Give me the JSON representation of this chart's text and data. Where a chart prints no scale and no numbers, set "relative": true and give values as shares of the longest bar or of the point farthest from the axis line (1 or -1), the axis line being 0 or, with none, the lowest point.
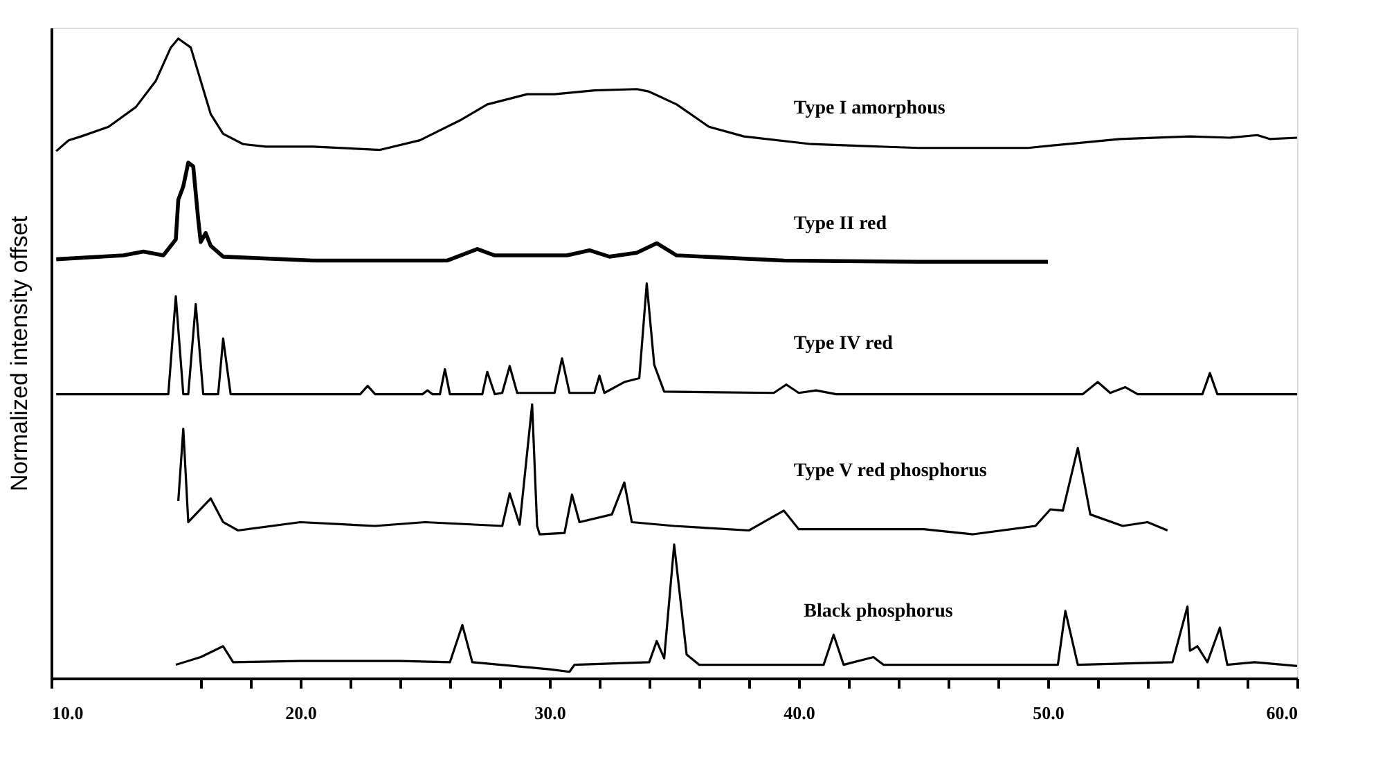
{
  "chart_data": {
    "type": "line",
    "relative": true,
    "ylabel": "Normalized intensity offset",
    "tick_labels": "x",
    "grid": false,
    "legend": false,
    "marker": "none",
    "line_style": "solid",
    "xlim": [
      10,
      60
    ],
    "xticks": [
      {
        "value": 10,
        "label": "10.0"
      },
      {
        "value": 16,
        "label": null
      },
      {
        "value": 18,
        "label": null
      },
      {
        "value": 20,
        "label": "20.0"
      },
      {
        "value": 22,
        "label": null
      },
      {
        "value": 24,
        "label": null
      },
      {
        "value": 26,
        "label": null
      },
      {
        "value": 28,
        "label": null
      },
      {
        "value": 30,
        "label": "30.0"
      },
      {
        "value": 32,
        "label": null
      },
      {
        "value": 34,
        "label": null
      },
      {
        "value": 36,
        "label": null
      },
      {
        "value": 38,
        "label": null
      },
      {
        "value": 40,
        "label": "40.0"
      },
      {
        "value": 42,
        "label": null
      },
      {
        "value": 44,
        "label": null
      },
      {
        "value": 46,
        "label": null
      },
      {
        "value": 48,
        "label": null
      },
      {
        "value": 50,
        "label": "50.0"
      },
      {
        "value": 52,
        "label": null
      },
      {
        "value": 54,
        "label": null
      },
      {
        "value": 56,
        "label": null
      },
      {
        "value": 58,
        "label": null
      },
      {
        "value": 60,
        "label": "60.0"
      }
    ],
    "series": [
      {
        "name": "Type I amorphous",
        "color": "#000000",
        "x": [
          10.2,
          10.7,
          11.2,
          12.3,
          13.4,
          14.2,
          14.8,
          15.1,
          15.6,
          16.0,
          16.4,
          16.9,
          17.7,
          18.6,
          20.5,
          23.2,
          24.8,
          26.4,
          27.5,
          29.1,
          30.2,
          31.8,
          33.5,
          34.0,
          35.1,
          36.4,
          37.8,
          40.5,
          44.8,
          49.2,
          50.2,
          52.9,
          55.7,
          57.3,
          58.4,
          58.9,
          60.0
        ],
        "values": [
          0.824,
          0.841,
          0.847,
          0.862,
          0.893,
          0.934,
          0.986,
          1.0,
          0.986,
          0.934,
          0.882,
          0.851,
          0.835,
          0.831,
          0.831,
          0.826,
          0.841,
          0.872,
          0.897,
          0.913,
          0.913,
          0.919,
          0.921,
          0.917,
          0.897,
          0.862,
          0.847,
          0.835,
          0.829,
          0.829,
          0.833,
          0.843,
          0.847,
          0.845,
          0.849,
          0.843,
          0.845
        ]
      },
      {
        "name": "Type II red",
        "color": "#000000",
        "x": [
          10.2,
          12.9,
          13.7,
          14.5,
          15.0,
          15.1,
          15.3,
          15.5,
          15.7,
          15.9,
          16.0,
          16.2,
          16.4,
          16.9,
          20.5,
          25.9,
          26.7,
          27.1,
          27.8,
          30.7,
          31.6,
          32.4,
          33.5,
          34.3,
          35.1,
          39.4,
          44.8,
          50.0
        ],
        "values": [
          0.655,
          0.661,
          0.667,
          0.661,
          0.686,
          0.748,
          0.769,
          0.806,
          0.8,
          0.717,
          0.682,
          0.696,
          0.676,
          0.659,
          0.653,
          0.653,
          0.665,
          0.671,
          0.661,
          0.661,
          0.669,
          0.659,
          0.665,
          0.68,
          0.661,
          0.653,
          0.651,
          0.651
        ]
      },
      {
        "name": "Type IV red",
        "color": "#000000",
        "x": [
          10.2,
          14.7,
          15.0,
          15.3,
          15.5,
          15.8,
          16.1,
          16.7,
          16.9,
          17.2,
          22.4,
          22.7,
          23.0,
          24.9,
          25.1,
          25.3,
          25.6,
          25.8,
          26.0,
          27.3,
          27.5,
          27.8,
          28.1,
          28.4,
          28.7,
          30.2,
          30.5,
          30.8,
          31.8,
          32.0,
          32.2,
          33.0,
          33.6,
          33.9,
          34.2,
          34.6,
          39.0,
          39.5,
          40.0,
          40.7,
          41.5,
          51.4,
          52.0,
          52.5,
          53.1,
          53.6,
          56.2,
          56.5,
          56.8,
          60.0
        ],
        "values": [
          0.444,
          0.444,
          0.597,
          0.444,
          0.444,
          0.585,
          0.444,
          0.444,
          0.531,
          0.444,
          0.444,
          0.457,
          0.444,
          0.444,
          0.45,
          0.444,
          0.444,
          0.483,
          0.444,
          0.444,
          0.479,
          0.444,
          0.446,
          0.488,
          0.446,
          0.446,
          0.5,
          0.446,
          0.446,
          0.473,
          0.446,
          0.463,
          0.469,
          0.617,
          0.49,
          0.448,
          0.446,
          0.459,
          0.446,
          0.45,
          0.444,
          0.444,
          0.463,
          0.446,
          0.455,
          0.444,
          0.444,
          0.477,
          0.444,
          0.444
        ]
      },
      {
        "name": "Type V red phosphorus",
        "color": "#000000",
        "x": [
          15.1,
          15.3,
          15.5,
          16.4,
          16.9,
          17.5,
          20.0,
          23.0,
          25.0,
          28.1,
          28.4,
          28.8,
          29.3,
          29.5,
          29.6,
          30.6,
          30.9,
          31.2,
          32.5,
          33.0,
          33.3,
          35.0,
          38.0,
          39.4,
          40.0,
          45.0,
          47.0,
          49.5,
          50.1,
          50.6,
          51.2,
          51.7,
          53.0,
          54.0,
          54.8
        ],
        "values": [
          0.277,
          0.39,
          0.244,
          0.281,
          0.244,
          0.231,
          0.244,
          0.238,
          0.244,
          0.238,
          0.289,
          0.24,
          0.428,
          0.238,
          0.225,
          0.227,
          0.287,
          0.244,
          0.256,
          0.306,
          0.244,
          0.238,
          0.231,
          0.262,
          0.233,
          0.233,
          0.225,
          0.238,
          0.264,
          0.262,
          0.36,
          0.256,
          0.238,
          0.244,
          0.231
        ]
      },
      {
        "name": "Black phosphorus",
        "color": "#000000",
        "x": [
          15.0,
          16.0,
          16.9,
          17.3,
          20.0,
          24.0,
          26.0,
          26.5,
          26.9,
          30.0,
          30.8,
          31.0,
          34.0,
          34.3,
          34.6,
          35.0,
          35.5,
          36.0,
          41.0,
          41.4,
          41.8,
          43.0,
          43.4,
          50.4,
          50.7,
          51.2,
          55.0,
          55.6,
          55.7,
          56.0,
          56.4,
          56.9,
          57.2,
          58.3,
          60.0
        ],
        "values": [
          0.021,
          0.033,
          0.05,
          0.025,
          0.027,
          0.027,
          0.025,
          0.083,
          0.025,
          0.014,
          0.01,
          0.021,
          0.025,
          0.058,
          0.031,
          0.209,
          0.037,
          0.021,
          0.021,
          0.068,
          0.021,
          0.033,
          0.021,
          0.021,
          0.105,
          0.021,
          0.025,
          0.112,
          0.043,
          0.05,
          0.025,
          0.079,
          0.021,
          0.025,
          0.019
        ]
      }
    ]
  }
}
